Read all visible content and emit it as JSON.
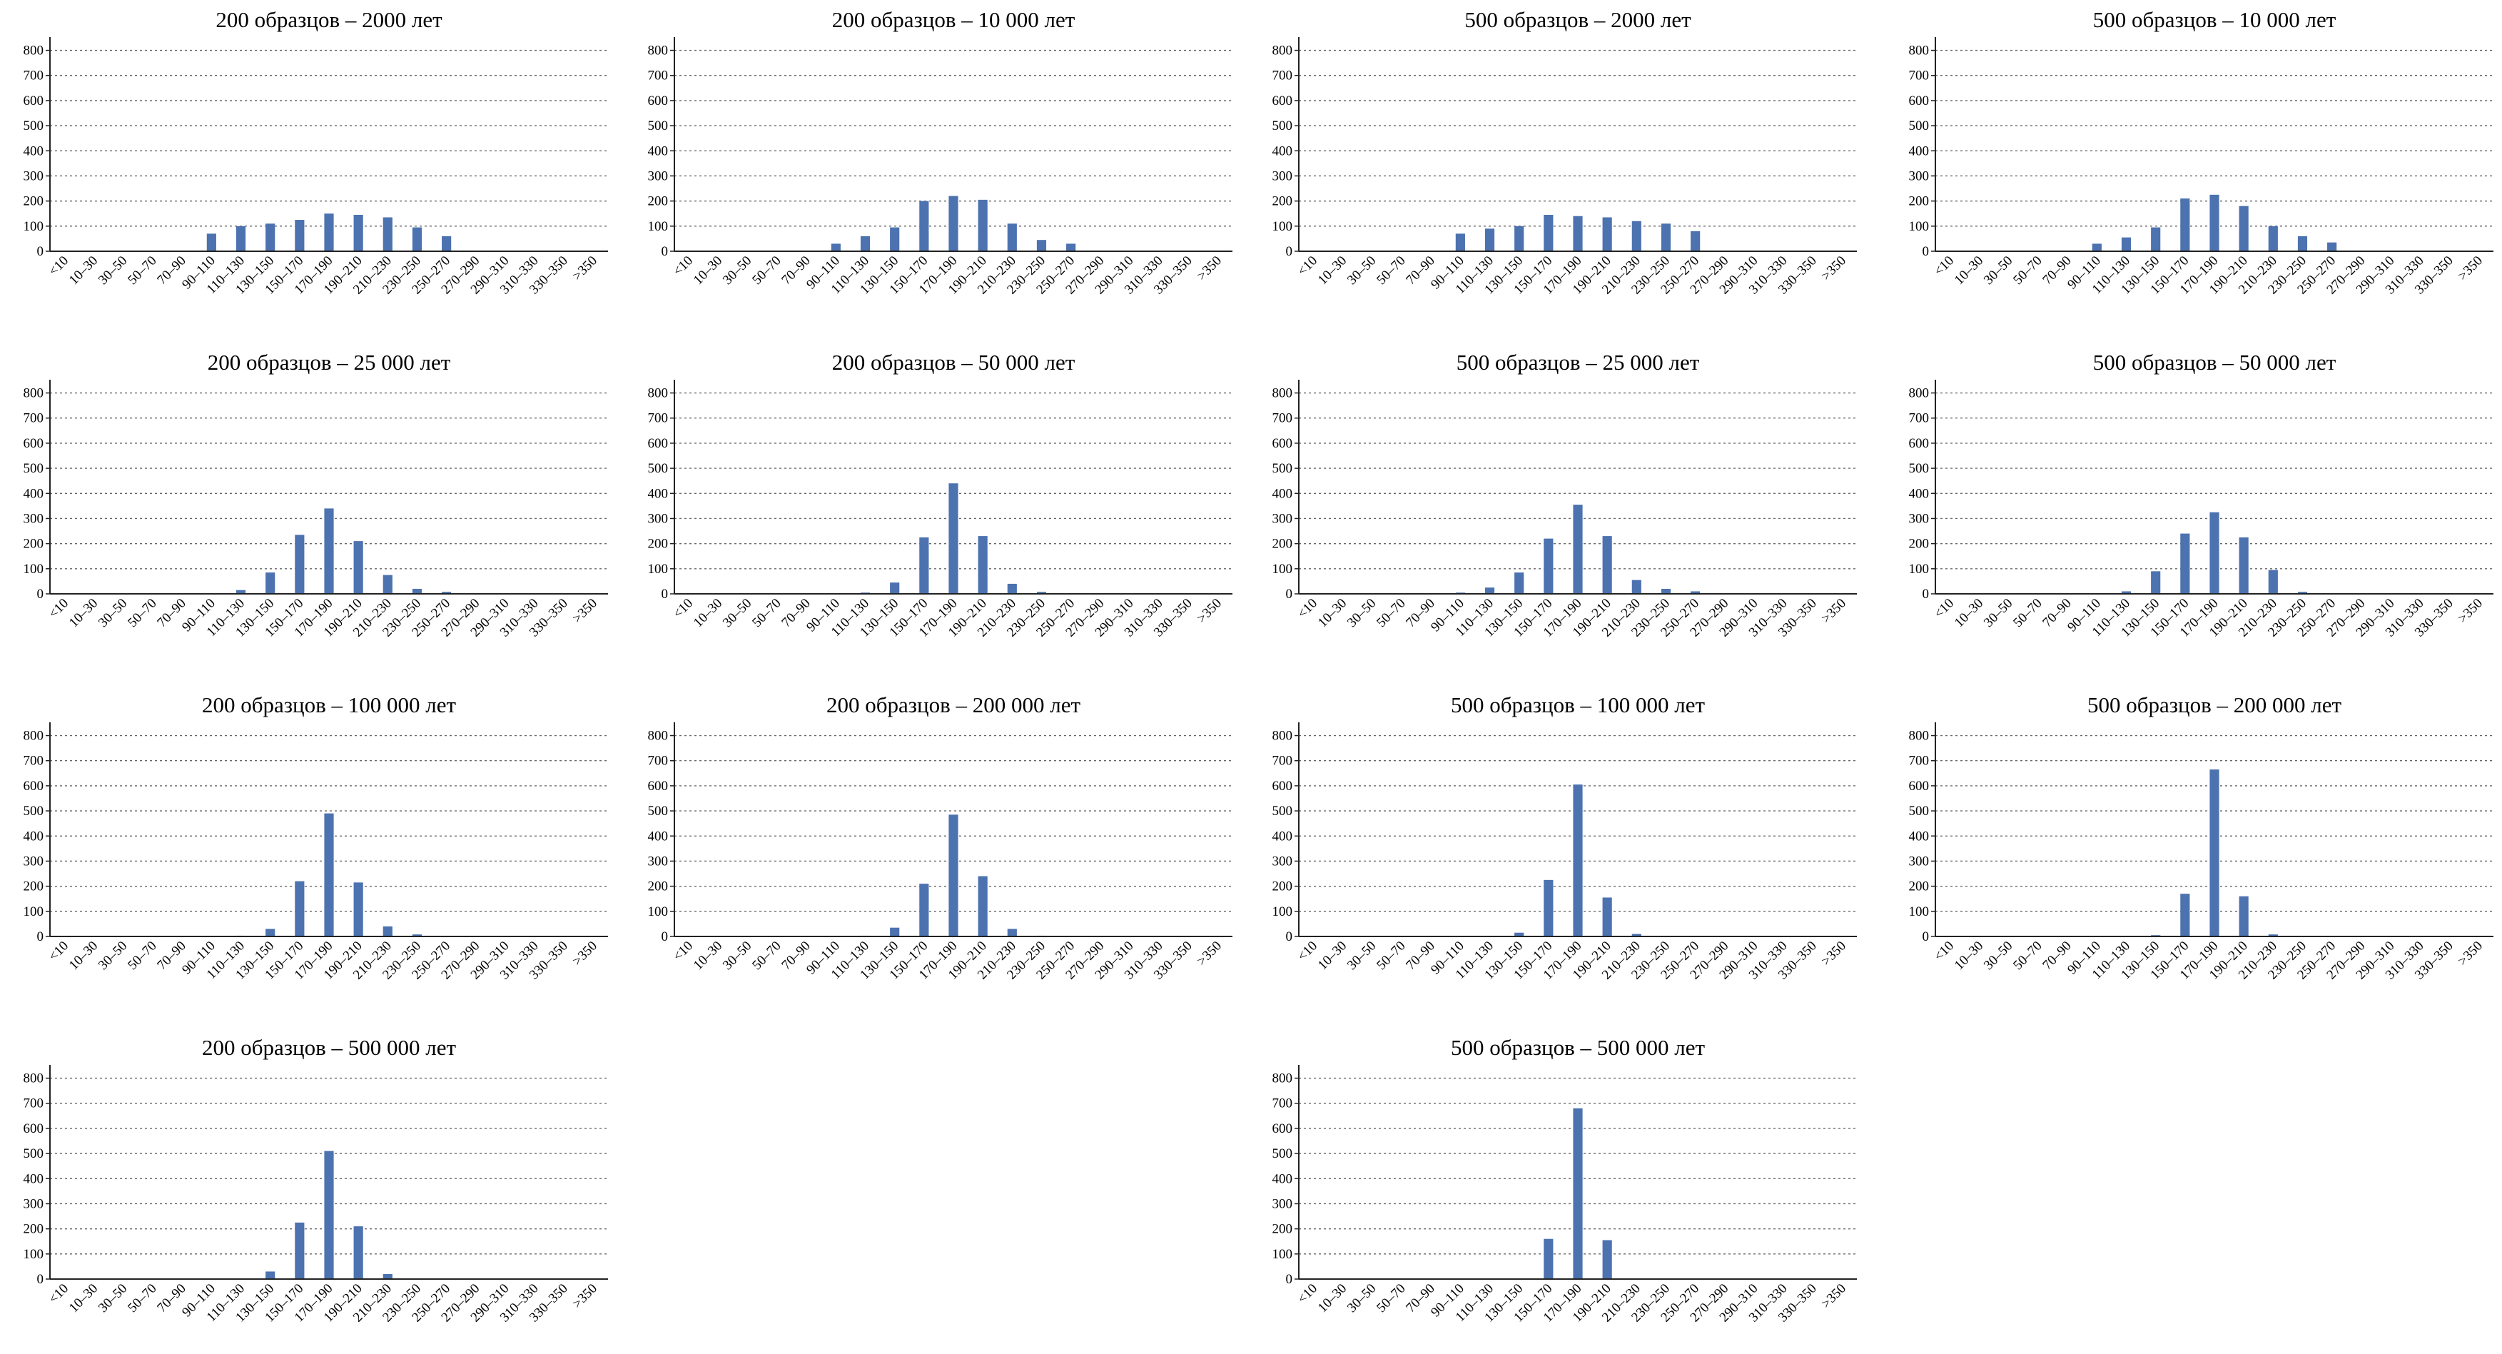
{
  "style": {
    "bar_color": "#4c72b0"
  },
  "chart_data": [
    {
      "type": "bar",
      "title": "200 образцов – 2000 лет",
      "ylim": [
        0,
        830
      ],
      "yticks": [
        0,
        100,
        200,
        300,
        400,
        500,
        600,
        700,
        800
      ],
      "grid": "horizontal dotted",
      "categories": [
        "<10",
        "10–30",
        "30–50",
        "50–70",
        "70–90",
        "90–110",
        "110–130",
        "130–150",
        "150–170",
        "170–190",
        "190–210",
        "210–230",
        "230–250",
        "250–270",
        "270–290",
        "290–310",
        "310–330",
        "330–350",
        ">350"
      ],
      "values": [
        0,
        0,
        0,
        0,
        0,
        70,
        100,
        110,
        125,
        150,
        145,
        135,
        95,
        60,
        0,
        0,
        0,
        0,
        0
      ]
    },
    {
      "type": "bar",
      "title": "200 образцов – 10 000 лет",
      "ylim": [
        0,
        830
      ],
      "yticks": [
        0,
        100,
        200,
        300,
        400,
        500,
        600,
        700,
        800
      ],
      "grid": "horizontal dotted",
      "categories": [
        "<10",
        "10–30",
        "30–50",
        "50–70",
        "70–90",
        "90–110",
        "110–130",
        "130–150",
        "150–170",
        "170–190",
        "190–210",
        "210–230",
        "230–250",
        "250–270",
        "270–290",
        "290–310",
        "310–330",
        "330–350",
        ">350"
      ],
      "values": [
        0,
        0,
        0,
        0,
        0,
        30,
        60,
        95,
        200,
        220,
        205,
        110,
        45,
        30,
        0,
        0,
        0,
        0,
        0
      ]
    },
    {
      "type": "bar",
      "title": "500 образцов – 2000 лет",
      "ylim": [
        0,
        830
      ],
      "yticks": [
        0,
        100,
        200,
        300,
        400,
        500,
        600,
        700,
        800
      ],
      "grid": "horizontal dotted",
      "categories": [
        "<10",
        "10–30",
        "30–50",
        "50–70",
        "70–90",
        "90–110",
        "110–130",
        "130–150",
        "150–170",
        "170–190",
        "190–210",
        "210–230",
        "230–250",
        "250–270",
        "270–290",
        "290–310",
        "310–330",
        "330–350",
        ">350"
      ],
      "values": [
        0,
        0,
        0,
        0,
        0,
        70,
        90,
        100,
        145,
        140,
        135,
        120,
        110,
        80,
        0,
        0,
        0,
        0,
        0
      ]
    },
    {
      "type": "bar",
      "title": "500 образцов – 10 000 лет",
      "ylim": [
        0,
        830
      ],
      "yticks": [
        0,
        100,
        200,
        300,
        400,
        500,
        600,
        700,
        800
      ],
      "grid": "horizontal dotted",
      "categories": [
        "<10",
        "10–30",
        "30–50",
        "50–70",
        "70–90",
        "90–110",
        "110–130",
        "130–150",
        "150–170",
        "170–190",
        "190–210",
        "210–230",
        "230–250",
        "250–270",
        "270–290",
        "290–310",
        "310–330",
        "330–350",
        ">350"
      ],
      "values": [
        0,
        0,
        0,
        0,
        0,
        30,
        55,
        95,
        210,
        225,
        180,
        100,
        60,
        35,
        0,
        0,
        0,
        0,
        0
      ]
    },
    {
      "type": "bar",
      "title": "200 образцов – 25 000 лет",
      "ylim": [
        0,
        830
      ],
      "yticks": [
        0,
        100,
        200,
        300,
        400,
        500,
        600,
        700,
        800
      ],
      "grid": "horizontal dotted",
      "categories": [
        "<10",
        "10–30",
        "30–50",
        "50–70",
        "70–90",
        "90–110",
        "110–130",
        "130–150",
        "150–170",
        "170–190",
        "190–210",
        "210–230",
        "230–250",
        "250–270",
        "270–290",
        "290–310",
        "310–330",
        "330–350",
        ">350"
      ],
      "values": [
        0,
        0,
        0,
        0,
        0,
        3,
        15,
        85,
        235,
        340,
        210,
        75,
        20,
        8,
        0,
        0,
        0,
        0,
        0
      ]
    },
    {
      "type": "bar",
      "title": "200 образцов – 50 000 лет",
      "ylim": [
        0,
        830
      ],
      "yticks": [
        0,
        100,
        200,
        300,
        400,
        500,
        600,
        700,
        800
      ],
      "grid": "horizontal dotted",
      "categories": [
        "<10",
        "10–30",
        "30–50",
        "50–70",
        "70–90",
        "90–110",
        "110–130",
        "130–150",
        "150–170",
        "170–190",
        "190–210",
        "210–230",
        "230–250",
        "250–270",
        "270–290",
        "290–310",
        "310–330",
        "330–350",
        ">350"
      ],
      "values": [
        0,
        0,
        0,
        0,
        0,
        2,
        5,
        45,
        225,
        440,
        230,
        40,
        8,
        3,
        0,
        0,
        0,
        0,
        0
      ]
    },
    {
      "type": "bar",
      "title": "500 образцов – 25 000 лет",
      "ylim": [
        0,
        830
      ],
      "yticks": [
        0,
        100,
        200,
        300,
        400,
        500,
        600,
        700,
        800
      ],
      "grid": "horizontal dotted",
      "categories": [
        "<10",
        "10–30",
        "30–50",
        "50–70",
        "70–90",
        "90–110",
        "110–130",
        "130–150",
        "150–170",
        "170–190",
        "190–210",
        "210–230",
        "230–250",
        "250–270",
        "270–290",
        "290–310",
        "310–330",
        "330–350",
        ">350"
      ],
      "values": [
        0,
        0,
        0,
        0,
        0,
        5,
        25,
        85,
        220,
        355,
        230,
        55,
        20,
        10,
        0,
        0,
        0,
        0,
        0
      ]
    },
    {
      "type": "bar",
      "title": "500 образцов – 50 000 лет",
      "ylim": [
        0,
        830
      ],
      "yticks": [
        0,
        100,
        200,
        300,
        400,
        500,
        600,
        700,
        800
      ],
      "grid": "horizontal dotted",
      "categories": [
        "<10",
        "10–30",
        "30–50",
        "50–70",
        "70–90",
        "90–110",
        "110–130",
        "130–150",
        "150–170",
        "170–190",
        "190–210",
        "210–230",
        "230–250",
        "250–270",
        "270–290",
        "290–310",
        "310–330",
        "330–350",
        ">350"
      ],
      "values": [
        0,
        0,
        0,
        0,
        0,
        2,
        10,
        90,
        240,
        325,
        225,
        95,
        8,
        3,
        0,
        0,
        0,
        0,
        0
      ]
    },
    {
      "type": "bar",
      "title": "200 образцов – 100 000 лет",
      "ylim": [
        0,
        830
      ],
      "yticks": [
        0,
        100,
        200,
        300,
        400,
        500,
        600,
        700,
        800
      ],
      "grid": "horizontal dotted",
      "categories": [
        "<10",
        "10–30",
        "30–50",
        "50–70",
        "70–90",
        "90–110",
        "110–130",
        "130–150",
        "150–170",
        "170–190",
        "190–210",
        "210–230",
        "230–250",
        "250–270",
        "270–290",
        "290–310",
        "310–330",
        "330–350",
        ">350"
      ],
      "values": [
        0,
        0,
        0,
        0,
        0,
        0,
        3,
        30,
        220,
        490,
        215,
        40,
        8,
        2,
        0,
        0,
        0,
        0,
        0
      ]
    },
    {
      "type": "bar",
      "title": "200 образцов – 200 000 лет",
      "ylim": [
        0,
        830
      ],
      "yticks": [
        0,
        100,
        200,
        300,
        400,
        500,
        600,
        700,
        800
      ],
      "grid": "horizontal dotted",
      "categories": [
        "<10",
        "10–30",
        "30–50",
        "50–70",
        "70–90",
        "90–110",
        "110–130",
        "130–150",
        "150–170",
        "170–190",
        "190–210",
        "210–230",
        "230–250",
        "250–270",
        "270–290",
        "290–310",
        "310–330",
        "330–350",
        ">350"
      ],
      "values": [
        0,
        0,
        0,
        0,
        0,
        0,
        3,
        35,
        210,
        485,
        240,
        30,
        3,
        0,
        0,
        0,
        0,
        0,
        0
      ]
    },
    {
      "type": "bar",
      "title": "500 образцов – 100 000 лет",
      "ylim": [
        0,
        830
      ],
      "yticks": [
        0,
        100,
        200,
        300,
        400,
        500,
        600,
        700,
        800
      ],
      "grid": "horizontal dotted",
      "categories": [
        "<10",
        "10–30",
        "30–50",
        "50–70",
        "70–90",
        "90–110",
        "110–130",
        "130–150",
        "150–170",
        "170–190",
        "190–210",
        "210–230",
        "230–250",
        "250–270",
        "270–290",
        "290–310",
        "310–330",
        "330–350",
        ">350"
      ],
      "values": [
        0,
        0,
        0,
        0,
        0,
        0,
        2,
        15,
        225,
        605,
        155,
        10,
        2,
        0,
        0,
        0,
        0,
        0,
        0
      ]
    },
    {
      "type": "bar",
      "title": "500 образцов – 200 000 лет",
      "ylim": [
        0,
        830
      ],
      "yticks": [
        0,
        100,
        200,
        300,
        400,
        500,
        600,
        700,
        800
      ],
      "grid": "horizontal dotted",
      "categories": [
        "<10",
        "10–30",
        "30–50",
        "50–70",
        "70–90",
        "90–110",
        "110–130",
        "130–150",
        "150–170",
        "170–190",
        "190–210",
        "210–230",
        "230–250",
        "250–270",
        "270–290",
        "290–310",
        "310–330",
        "330–350",
        ">350"
      ],
      "values": [
        0,
        0,
        0,
        0,
        0,
        0,
        0,
        5,
        170,
        665,
        160,
        8,
        0,
        0,
        0,
        0,
        0,
        0,
        0
      ]
    },
    {
      "type": "bar",
      "title": "200 образцов – 500 000 лет",
      "ylim": [
        0,
        830
      ],
      "yticks": [
        0,
        100,
        200,
        300,
        400,
        500,
        600,
        700,
        800
      ],
      "grid": "horizontal dotted",
      "categories": [
        "<10",
        "10–30",
        "30–50",
        "50–70",
        "70–90",
        "90–110",
        "110–130",
        "130–150",
        "150–170",
        "170–190",
        "190–210",
        "210–230",
        "230–250",
        "250–270",
        "270–290",
        "290–310",
        "310–330",
        "330–350",
        ">350"
      ],
      "values": [
        0,
        0,
        0,
        0,
        0,
        0,
        2,
        30,
        225,
        510,
        210,
        20,
        2,
        0,
        0,
        0,
        0,
        0,
        0
      ]
    },
    {
      "type": "bar",
      "title": "500 образцов – 500 000 лет",
      "ylim": [
        0,
        830
      ],
      "yticks": [
        0,
        100,
        200,
        300,
        400,
        500,
        600,
        700,
        800
      ],
      "grid": "horizontal dotted",
      "categories": [
        "<10",
        "10–30",
        "30–50",
        "50–70",
        "70–90",
        "90–110",
        "110–130",
        "130–150",
        "150–170",
        "170–190",
        "190–210",
        "210–230",
        "230–250",
        "250–270",
        "270–290",
        "290–310",
        "310–330",
        "330–350",
        ">350"
      ],
      "values": [
        0,
        0,
        0,
        0,
        0,
        0,
        0,
        2,
        160,
        680,
        155,
        2,
        0,
        0,
        0,
        0,
        0,
        0,
        0
      ]
    }
  ]
}
